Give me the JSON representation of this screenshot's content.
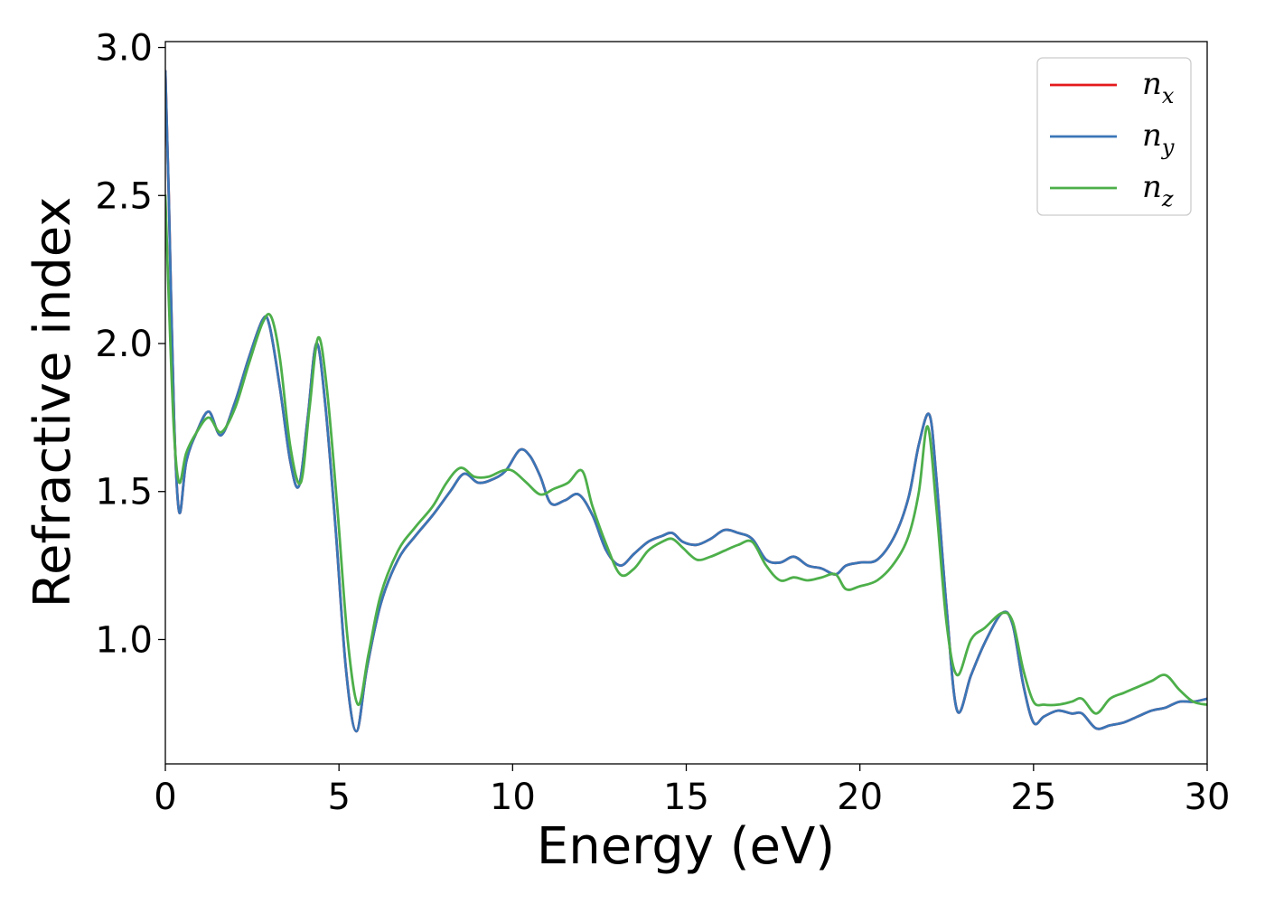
{
  "chart_data": {
    "type": "line",
    "xlabel": "Energy (eV)",
    "ylabel": "Refractive index",
    "xlim": [
      0,
      30
    ],
    "ylim": [
      0.58,
      3.02
    ],
    "xticks": [
      0,
      5,
      10,
      15,
      20,
      25,
      30
    ],
    "xtick_labels": [
      "0",
      "5",
      "10",
      "15",
      "20",
      "25",
      "30"
    ],
    "yticks": [
      1.0,
      1.5,
      2.0,
      2.5,
      3.0
    ],
    "ytick_labels": [
      "1.0",
      "1.5",
      "2.0",
      "2.5",
      "3.0"
    ],
    "grid": false,
    "legend_position": "top-right",
    "series": [
      {
        "name": "n_x",
        "base": "n",
        "sub": "x",
        "color": "#e41a1c",
        "x": [
          0.0,
          0.1,
          0.25,
          0.4,
          0.6,
          0.9,
          1.25,
          1.6,
          2.0,
          2.4,
          2.8,
          3.0,
          3.3,
          3.6,
          3.85,
          4.1,
          4.35,
          4.6,
          4.9,
          5.2,
          5.5,
          5.8,
          6.2,
          6.7,
          7.2,
          7.7,
          8.2,
          8.6,
          9.0,
          9.4,
          9.8,
          10.2,
          10.5,
          10.8,
          11.1,
          11.5,
          11.9,
          12.3,
          12.7,
          13.1,
          13.5,
          13.9,
          14.3,
          14.6,
          14.9,
          15.3,
          15.7,
          16.1,
          16.5,
          16.9,
          17.3,
          17.7,
          18.1,
          18.5,
          18.9,
          19.3,
          19.6,
          20.0,
          20.5,
          21.0,
          21.4,
          21.7,
          22.0,
          22.2,
          22.5,
          22.8,
          23.2,
          23.6,
          24.1,
          24.4,
          24.7,
          25.0,
          25.3,
          25.7,
          26.1,
          26.4,
          26.8,
          27.2,
          27.6,
          28.0,
          28.4,
          28.8,
          29.2,
          29.6,
          30.0
        ],
        "y": [
          2.92,
          2.5,
          1.75,
          1.43,
          1.6,
          1.7,
          1.77,
          1.69,
          1.8,
          1.95,
          2.08,
          2.06,
          1.85,
          1.6,
          1.52,
          1.75,
          2.0,
          1.8,
          1.38,
          0.9,
          0.69,
          0.9,
          1.12,
          1.27,
          1.35,
          1.42,
          1.5,
          1.56,
          1.53,
          1.54,
          1.57,
          1.64,
          1.62,
          1.55,
          1.46,
          1.47,
          1.49,
          1.42,
          1.3,
          1.25,
          1.29,
          1.33,
          1.35,
          1.36,
          1.33,
          1.32,
          1.34,
          1.37,
          1.36,
          1.34,
          1.27,
          1.26,
          1.28,
          1.25,
          1.24,
          1.22,
          1.25,
          1.26,
          1.27,
          1.35,
          1.48,
          1.66,
          1.76,
          1.55,
          1.1,
          0.76,
          0.88,
          0.99,
          1.09,
          1.05,
          0.85,
          0.72,
          0.74,
          0.76,
          0.75,
          0.75,
          0.7,
          0.71,
          0.72,
          0.74,
          0.76,
          0.77,
          0.79,
          0.79,
          0.8
        ]
      },
      {
        "name": "n_y",
        "base": "n",
        "sub": "y",
        "color": "#3a76b7",
        "x": [
          0.0,
          0.1,
          0.25,
          0.4,
          0.6,
          0.9,
          1.25,
          1.6,
          2.0,
          2.4,
          2.8,
          3.0,
          3.3,
          3.6,
          3.85,
          4.1,
          4.35,
          4.6,
          4.9,
          5.2,
          5.5,
          5.8,
          6.2,
          6.7,
          7.2,
          7.7,
          8.2,
          8.6,
          9.0,
          9.4,
          9.8,
          10.2,
          10.5,
          10.8,
          11.1,
          11.5,
          11.9,
          12.3,
          12.7,
          13.1,
          13.5,
          13.9,
          14.3,
          14.6,
          14.9,
          15.3,
          15.7,
          16.1,
          16.5,
          16.9,
          17.3,
          17.7,
          18.1,
          18.5,
          18.9,
          19.3,
          19.6,
          20.0,
          20.5,
          21.0,
          21.4,
          21.7,
          22.0,
          22.2,
          22.5,
          22.8,
          23.2,
          23.6,
          24.1,
          24.4,
          24.7,
          25.0,
          25.3,
          25.7,
          26.1,
          26.4,
          26.8,
          27.2,
          27.6,
          28.0,
          28.4,
          28.8,
          29.2,
          29.6,
          30.0
        ],
        "y": [
          2.92,
          2.5,
          1.75,
          1.43,
          1.6,
          1.7,
          1.77,
          1.69,
          1.8,
          1.95,
          2.08,
          2.06,
          1.85,
          1.6,
          1.52,
          1.75,
          2.0,
          1.8,
          1.38,
          0.9,
          0.69,
          0.9,
          1.12,
          1.27,
          1.35,
          1.42,
          1.5,
          1.56,
          1.53,
          1.54,
          1.57,
          1.64,
          1.62,
          1.55,
          1.46,
          1.47,
          1.49,
          1.42,
          1.3,
          1.25,
          1.29,
          1.33,
          1.35,
          1.36,
          1.33,
          1.32,
          1.34,
          1.37,
          1.36,
          1.34,
          1.27,
          1.26,
          1.28,
          1.25,
          1.24,
          1.22,
          1.25,
          1.26,
          1.27,
          1.35,
          1.48,
          1.66,
          1.76,
          1.55,
          1.1,
          0.76,
          0.88,
          0.99,
          1.09,
          1.05,
          0.85,
          0.72,
          0.74,
          0.76,
          0.75,
          0.75,
          0.7,
          0.71,
          0.72,
          0.74,
          0.76,
          0.77,
          0.79,
          0.79,
          0.8
        ]
      },
      {
        "name": "n_z",
        "base": "n",
        "sub": "z",
        "color": "#4daf4a",
        "x": [
          0.0,
          0.1,
          0.25,
          0.4,
          0.6,
          0.9,
          1.25,
          1.6,
          2.0,
          2.4,
          2.8,
          3.05,
          3.3,
          3.6,
          3.9,
          4.15,
          4.4,
          4.65,
          4.95,
          5.25,
          5.55,
          5.85,
          6.2,
          6.7,
          7.2,
          7.7,
          8.1,
          8.5,
          8.9,
          9.3,
          9.7,
          10.0,
          10.4,
          10.8,
          11.2,
          11.6,
          12.0,
          12.3,
          12.7,
          13.1,
          13.5,
          13.9,
          14.3,
          14.6,
          14.9,
          15.3,
          15.7,
          16.1,
          16.5,
          16.9,
          17.3,
          17.7,
          18.1,
          18.5,
          18.9,
          19.3,
          19.6,
          20.0,
          20.5,
          21.0,
          21.4,
          21.7,
          21.95,
          22.2,
          22.5,
          22.8,
          23.2,
          23.6,
          24.1,
          24.4,
          24.7,
          25.0,
          25.3,
          25.7,
          26.1,
          26.4,
          26.8,
          27.2,
          27.6,
          28.0,
          28.4,
          28.8,
          29.2,
          29.6,
          30.0
        ],
        "y": [
          2.5,
          2.15,
          1.7,
          1.53,
          1.63,
          1.7,
          1.75,
          1.7,
          1.78,
          1.93,
          2.07,
          2.09,
          1.95,
          1.65,
          1.53,
          1.78,
          2.02,
          1.85,
          1.45,
          1.0,
          0.78,
          0.95,
          1.15,
          1.3,
          1.38,
          1.45,
          1.53,
          1.58,
          1.55,
          1.55,
          1.57,
          1.57,
          1.53,
          1.49,
          1.51,
          1.53,
          1.57,
          1.45,
          1.32,
          1.22,
          1.24,
          1.3,
          1.33,
          1.34,
          1.31,
          1.27,
          1.28,
          1.3,
          1.32,
          1.33,
          1.25,
          1.2,
          1.21,
          1.2,
          1.21,
          1.22,
          1.17,
          1.18,
          1.2,
          1.26,
          1.35,
          1.5,
          1.72,
          1.45,
          1.05,
          0.88,
          1.0,
          1.04,
          1.09,
          1.06,
          0.9,
          0.79,
          0.78,
          0.78,
          0.79,
          0.8,
          0.75,
          0.8,
          0.82,
          0.84,
          0.86,
          0.88,
          0.83,
          0.79,
          0.78
        ]
      }
    ]
  }
}
